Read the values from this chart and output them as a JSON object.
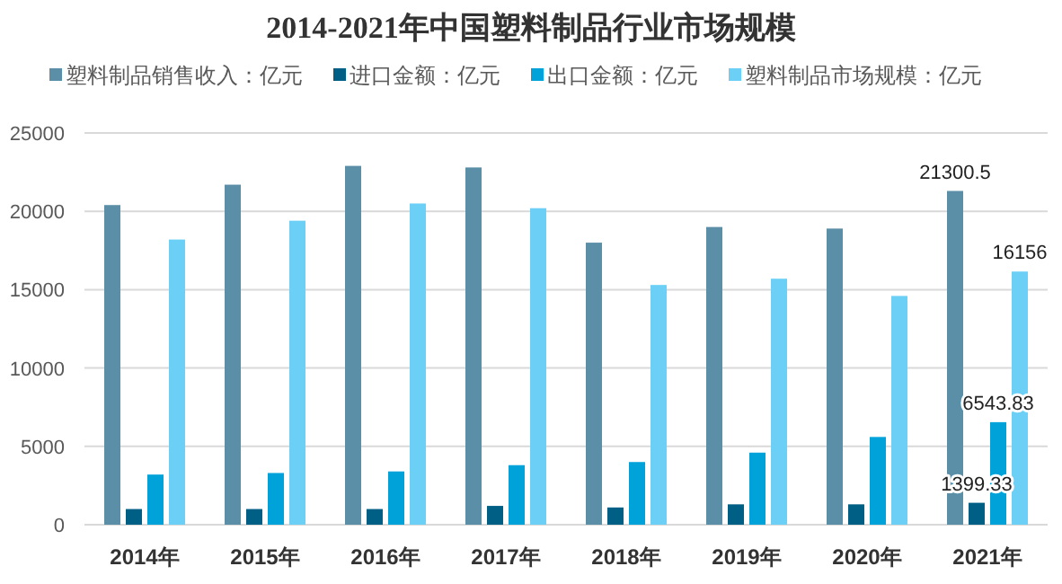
{
  "chart_data": {
    "type": "bar",
    "title": "2014-2021年中国塑料制品行业市场规模",
    "categories": [
      "2014年",
      "2015年",
      "2016年",
      "2017年",
      "2018年",
      "2019年",
      "2020年",
      "2021年"
    ],
    "series": [
      {
        "name": "塑料制品销售收入：亿元",
        "color": "#5b8fa8",
        "values": [
          20400,
          21700,
          22900,
          22800,
          18000,
          19000,
          18900,
          21300.5
        ],
        "value_labels": [
          null,
          null,
          null,
          null,
          null,
          null,
          null,
          "21300.5"
        ]
      },
      {
        "name": "进口金额：亿元",
        "color": "#005f85",
        "values": [
          1000,
          1000,
          1000,
          1200,
          1100,
          1300,
          1300,
          1399.33
        ],
        "value_labels": [
          null,
          null,
          null,
          null,
          null,
          null,
          null,
          "1399.33"
        ]
      },
      {
        "name": "出口金额：亿元",
        "color": "#00a2da",
        "values": [
          3200,
          3300,
          3400,
          3800,
          4000,
          4600,
          5600,
          6543.83
        ],
        "value_labels": [
          null,
          null,
          null,
          null,
          null,
          null,
          null,
          "6543.83"
        ]
      },
      {
        "name": "塑料制品市场规模：亿元",
        "color": "#6bcff6",
        "values": [
          18200,
          19400,
          20500,
          20200,
          15300,
          15700,
          14600,
          16156
        ],
        "value_labels": [
          null,
          null,
          null,
          null,
          null,
          null,
          null,
          "16156"
        ]
      }
    ],
    "ylim": [
      0,
      25000
    ],
    "yticks": [
      0,
      5000,
      10000,
      15000,
      20000,
      25000
    ],
    "grid": "y",
    "legend": "top"
  }
}
